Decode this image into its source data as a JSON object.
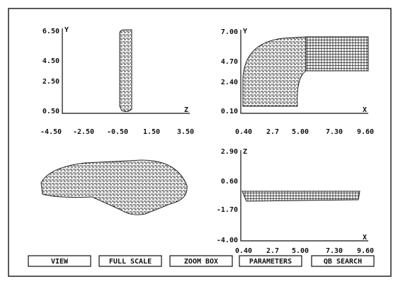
{
  "panels": [
    {
      "y_axis_label": "Y",
      "x_axis_label": "Z",
      "yticks": [
        "6.50",
        "4.50",
        "2.50",
        "0.50"
      ],
      "xticks": [
        "-4.50",
        "-2.50",
        "-0.50",
        "1.50",
        "3.50"
      ]
    },
    {
      "y_axis_label": "Y",
      "x_axis_label": "X",
      "yticks": [
        "7.00",
        "4.70",
        "2.40",
        "0.10"
      ],
      "xticks": [
        "0.40",
        "2.7",
        "5.00",
        "7.30",
        "9.60"
      ]
    },
    {
      "y_axis_label": "Z",
      "x_axis_label": "X",
      "yticks": [
        "2.90",
        "0.60",
        "-1.70",
        "-4.00"
      ],
      "xticks": [
        "0.40",
        "2.7",
        "5.00",
        "7.30",
        "9.60"
      ]
    }
  ],
  "buttons": [
    "VIEW",
    "FULL SCALE",
    "ZOOM BOX",
    "PARAMETERS",
    "QB SEARCH"
  ]
}
